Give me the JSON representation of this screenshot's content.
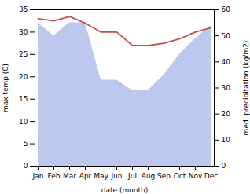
{
  "chart_data": {
    "type": "line",
    "xlabel": "date (month)",
    "ylabel": "max temp (C)",
    "y2label": "med. precipitation (kg/m2)",
    "categories": [
      "Jan",
      "Feb",
      "Mar",
      "Apr",
      "May",
      "Jun",
      "Jul",
      "Aug",
      "Sep",
      "Oct",
      "Nov",
      "Dec"
    ],
    "series": [
      {
        "type": "area",
        "axis": "y2",
        "color": "#bcc8ee",
        "values": [
          55.0,
          50.0,
          55.0,
          55.0,
          33.0,
          33.0,
          29.0,
          29.0,
          35.0,
          43.0,
          49.0,
          54.0
        ]
      },
      {
        "type": "line",
        "color": "#c0504d",
        "values": [
          33.0,
          32.5,
          33.5,
          32.0,
          30.0,
          30.0,
          27.0,
          27.0,
          27.5,
          28.5,
          30.0,
          31.0
        ]
      }
    ],
    "ylim": [
      0,
      35
    ],
    "yticks": [
      0,
      5,
      10,
      15,
      20,
      25,
      30,
      35
    ],
    "y2lim": [
      0,
      60
    ],
    "y2ticks": [
      0,
      10,
      20,
      30,
      40,
      50,
      60
    ],
    "grid": false
  }
}
